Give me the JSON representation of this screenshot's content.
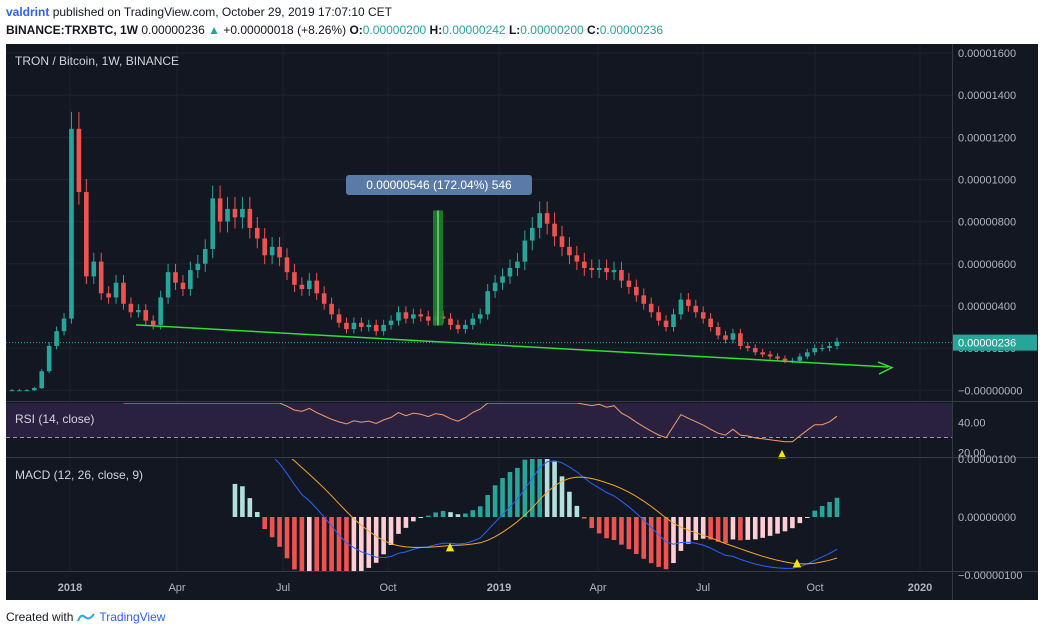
{
  "header": {
    "author": "valdrint",
    "published": "published on TradingView.com, October 29, 2019 17:07:10 CET",
    "symbol": "BINANCE:TRXBTC, 1W",
    "last": "0.00000236",
    "change_arrow": "▲",
    "change": "+0.00000018 (+8.26%)",
    "o_label": "O:",
    "o_value": "0.00000200",
    "h_label": "H:",
    "h_value": "0.00000242",
    "l_label": "L:",
    "l_value": "0.00000200",
    "c_label": "C:",
    "c_value": "0.00000236"
  },
  "footer": {
    "created_with": "Created with",
    "brand": "TradingView"
  },
  "colors": {
    "background": "#131722",
    "up": "#26a69a",
    "down": "#ef5350",
    "trendline": "#33dd33",
    "macd_line": "#2962ff",
    "signal_line": "#f5a623",
    "rsi_line": "#f39c6b",
    "price_label_bg": "#26a69a",
    "measure_label_bg": "#5a7aa8"
  },
  "chart_data": [
    {
      "type": "candlestick",
      "title": "TRON / Bitcoin, 1W, BINANCE",
      "y_axis_ticks": [
        "0.00001600",
        "0.00001400",
        "0.00001200",
        "0.00001000",
        "0.00000800",
        "0.00000600",
        "0.00000400",
        "0.00000200",
        "−0.00000000"
      ],
      "ylim": [
        -6e-07,
        1.6e-05
      ],
      "x_axis_ticks": [
        "2018",
        "Apr",
        "Jul",
        "Oct",
        "2019",
        "Apr",
        "Jul",
        "Oct",
        "2020"
      ],
      "last_price_label": "0.00000236",
      "last_price": 2.36e-06,
      "measure_label": "0.00000546 (172.04%) 546",
      "measure": {
        "from": 3.17e-06,
        "to": 8.63e-06
      },
      "trendline": {
        "from": 3.2e-06,
        "to": 1.2e-06
      },
      "closes": [
        1e-07,
        1e-07,
        1e-07,
        2e-07,
        1e-06,
        2.2e-06,
        2.9e-06,
        3.5e-06,
        1.25e-05,
        9.5e-06,
        5.5e-06,
        6.2e-06,
        4.7e-06,
        4.5e-06,
        5.2e-06,
        4.2e-06,
        3.8e-06,
        3.9e-06,
        3.4e-06,
        3.2e-06,
        4.5e-06,
        5.7e-06,
        5.2e-06,
        4.9e-06,
        5.8e-06,
        6.1e-06,
        6.8e-06,
        9.2e-06,
        8.1e-06,
        8.7e-06,
        8.3e-06,
        8.7e-06,
        7.8e-06,
        7.3e-06,
        6.5e-06,
        6.9e-06,
        6.4e-06,
        5.7e-06,
        5.1e-06,
        4.9e-06,
        5.3e-06,
        4.7e-06,
        4.2e-06,
        3.7e-06,
        3.3e-06,
        3e-06,
        3.3e-06,
        3.1e-06,
        3.2e-06,
        2.9e-06,
        3.2e-06,
        3.4e-06,
        3.8e-06,
        3.5e-06,
        3.7e-06,
        3.6e-06,
        3.4e-06,
        3.6e-06,
        3.5e-06,
        3.2e-06,
        3e-06,
        3.2e-06,
        3.5e-06,
        3.7e-06,
        4.8e-06,
        5.2e-06,
        5.5e-06,
        5.9e-06,
        6.2e-06,
        7.2e-06,
        7.8e-06,
        8.5e-06,
        8e-06,
        7.4e-06,
        6.9e-06,
        6.5e-06,
        6.2e-06,
        5.9e-06,
        5.8e-06,
        5.9e-06,
        5.7e-06,
        5.8e-06,
        5.3e-06,
        5e-06,
        4.6e-06,
        4.2e-06,
        3.8e-06,
        3.4e-06,
        3.1e-06,
        3.7e-06,
        4.4e-06,
        4.1e-06,
        3.8e-06,
        3.5e-06,
        3.1e-06,
        2.7e-06,
        2.5e-06,
        2.8e-06,
        2.2e-06,
        2.1e-06,
        1.9e-06,
        1.8e-06,
        1.7e-06,
        1.6e-06,
        1.5e-06,
        1.5e-06,
        1.7e-06,
        1.9e-06,
        2.1e-06,
        2.1e-06,
        2.2e-06,
        2.4e-06
      ]
    },
    {
      "type": "line",
      "title": "RSI (14, close)",
      "y_axis_ticks": [
        "40.00",
        "20.00"
      ],
      "ylim": [
        17,
        53
      ],
      "bands": [
        30,
        70
      ],
      "marker": "▲"
    },
    {
      "type": "bar",
      "title": "MACD (12, 26, close, 9)",
      "y_axis_ticks": [
        "0.00000100",
        "0.00000000",
        "−0.00000100"
      ],
      "ylim": [
        -1.3e-06,
        1.3e-06
      ],
      "marker": "▲"
    }
  ]
}
